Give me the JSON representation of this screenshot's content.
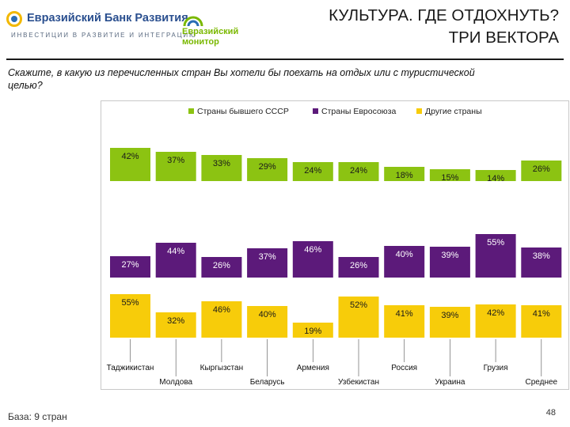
{
  "header": {
    "logo_name": "Евразийский Банк Развития",
    "logo_tagline": "ИНВЕСТИЦИИ В РАЗВИТИЕ И ИНТЕГРАЦИЮ",
    "monitor_line1": "Евразийский",
    "monitor_line2": "монитор",
    "title_line1": "КУЛЬТУРА. ГДЕ ОТДОХНУТЬ?",
    "title_line2": "ТРИ ВЕКТОРА"
  },
  "question": "Скажите, в какую из перечисленных стран Вы хотели бы поехать на отдых или с туристической целью?",
  "footer": {
    "base": "База: 9 стран",
    "page_number": "48"
  },
  "colors": {
    "ussr": "#8cc312",
    "eu": "#5c1a7a",
    "other": "#f7cc0a"
  },
  "chart_data": {
    "type": "bar",
    "categories": [
      "Таджикистан",
      "Молдова",
      "Кыргызстан",
      "Беларусь",
      "Армения",
      "Узбекистан",
      "Россия",
      "Украина",
      "Грузия",
      "Среднее"
    ],
    "series": [
      {
        "name": "Страны бывшего СССР",
        "values": [
          42,
          37,
          33,
          29,
          24,
          24,
          18,
          15,
          14,
          26
        ],
        "labels": [
          "42%",
          "37%",
          "33%",
          "29%",
          "24%",
          "24%",
          "18%",
          "15%",
          "14%",
          "26%"
        ]
      },
      {
        "name": "Страны Евросоюза",
        "values": [
          27,
          44,
          26,
          37,
          46,
          26,
          40,
          39,
          55,
          38
        ],
        "labels": [
          "27%",
          "44%",
          "26%",
          "37%",
          "46%",
          "26%",
          "40%",
          "39%",
          "55%",
          "38%"
        ]
      },
      {
        "name": "Другие страны",
        "values": [
          55,
          32,
          46,
          40,
          19,
          52,
          41,
          39,
          42,
          41
        ],
        "labels": [
          "55%",
          "32%",
          "46%",
          "40%",
          "19%",
          "52%",
          "41%",
          "39%",
          "42%",
          "41%"
        ]
      }
    ],
    "legend_position": "top",
    "grid": false
  }
}
